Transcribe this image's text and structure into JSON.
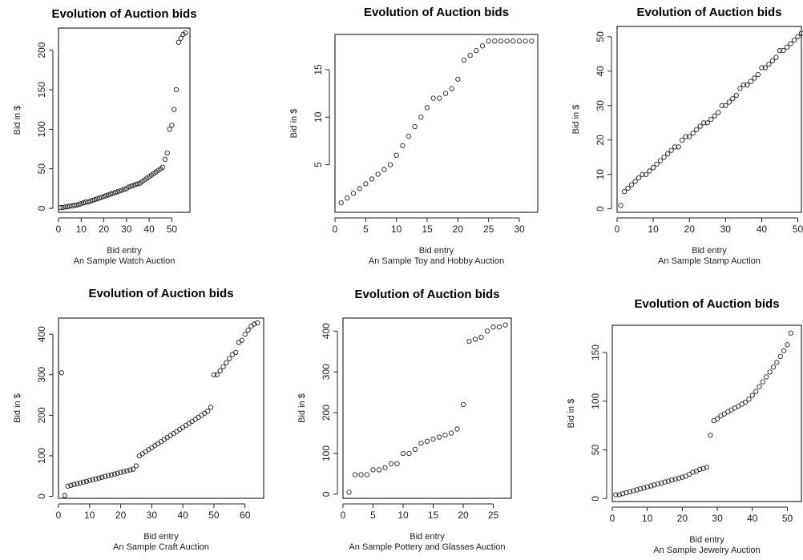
{
  "chart_data": [
    {
      "type": "scatter",
      "title": "Evolution of Auction bids",
      "xlabel": "Bid entry",
      "sublabel": "An Sample Watch Auction",
      "ylabel": "Bid in $",
      "xlim": [
        0,
        58
      ],
      "ylim": [
        -5,
        228
      ],
      "xticks": [
        0,
        10,
        20,
        30,
        40,
        50
      ],
      "yticks": [
        0,
        50,
        100,
        150,
        200
      ],
      "grid": false,
      "series": [
        {
          "values": [
            1,
            1,
            2,
            2,
            3,
            3,
            4,
            4,
            5,
            6,
            7,
            8,
            8,
            9,
            10,
            11,
            12,
            13,
            14,
            15,
            16,
            17,
            18,
            19,
            20,
            21,
            22,
            23,
            24,
            25,
            27,
            28,
            29,
            30,
            31,
            32,
            34,
            36,
            38,
            40,
            42,
            44,
            46,
            48,
            50,
            52,
            62,
            70,
            100,
            105,
            125,
            150,
            210,
            215,
            220,
            222
          ]
        }
      ]
    },
    {
      "type": "scatter",
      "title": "Evolution of Auction bids",
      "xlabel": "Bid entry",
      "sublabel": "An Sample Toy and Hobby Auction",
      "ylabel": "Bid in $",
      "xlim": [
        0,
        33
      ],
      "ylim": [
        0,
        18.7
      ],
      "xticks": [
        0,
        5,
        10,
        15,
        20,
        25,
        30
      ],
      "yticks": [
        5,
        10,
        15
      ],
      "grid": false,
      "series": [
        {
          "values": [
            1,
            1.5,
            2,
            2.5,
            3,
            3.5,
            4,
            4.5,
            5,
            6,
            7,
            8,
            9,
            10,
            11,
            12,
            12,
            12.5,
            13,
            14,
            16,
            16.5,
            17,
            17.5,
            18,
            18,
            18,
            18,
            18,
            18,
            18,
            18
          ]
        }
      ]
    },
    {
      "type": "scatter",
      "title": "Evolution of Auction bids",
      "xlabel": "Bid entry",
      "sublabel": "An Sample Stamp Auction",
      "ylabel": "Bid in $",
      "xlim": [
        0,
        51
      ],
      "ylim": [
        -1,
        53
      ],
      "xticks": [
        0,
        10,
        20,
        30,
        40,
        50
      ],
      "yticks": [
        0,
        10,
        20,
        30,
        40,
        50
      ],
      "grid": false,
      "series": [
        {
          "values": [
            1,
            5,
            6,
            7,
            8,
            9,
            10,
            10,
            11,
            12,
            13,
            14,
            15,
            16,
            17,
            18,
            18,
            20,
            21,
            21,
            22,
            23,
            24,
            25,
            25,
            26,
            27,
            28,
            30,
            30,
            31,
            32,
            33,
            35,
            36,
            36,
            37,
            38,
            39,
            41,
            41,
            42,
            43,
            44,
            46,
            46,
            47,
            48,
            49,
            50,
            51
          ]
        }
      ]
    },
    {
      "type": "scatter",
      "title": "Evolution of Auction bids",
      "xlabel": "Bid entry",
      "sublabel": "An Sample Craft Auction",
      "ylabel": "Bid in $",
      "xlim": [
        0,
        66
      ],
      "ylim": [
        -5,
        440
      ],
      "xticks": [
        0,
        10,
        20,
        30,
        40,
        50,
        60
      ],
      "yticks": [
        0,
        100,
        200,
        300,
        400
      ],
      "grid": false,
      "series": [
        {
          "values": [
            305,
            2,
            25,
            27,
            29,
            31,
            33,
            35,
            37,
            39,
            41,
            43,
            45,
            47,
            49,
            51,
            53,
            55,
            57,
            59,
            61,
            63,
            65,
            67,
            75,
            100,
            105,
            110,
            115,
            120,
            125,
            130,
            135,
            140,
            145,
            150,
            155,
            160,
            165,
            170,
            175,
            180,
            185,
            190,
            195,
            200,
            205,
            210,
            220,
            300,
            300,
            310,
            320,
            330,
            340,
            350,
            355,
            380,
            385,
            400,
            410,
            420,
            425,
            428
          ]
        }
      ]
    },
    {
      "type": "scatter",
      "title": "Evolution of Auction bids",
      "xlabel": "Bid entry",
      "sublabel": "An Sample Pottery and Glasses Auction",
      "ylabel": "Bid in $",
      "xlim": [
        0,
        28
      ],
      "ylim": [
        -10,
        432
      ],
      "xticks": [
        0,
        5,
        10,
        15,
        20,
        25
      ],
      "yticks": [
        0,
        100,
        200,
        300,
        400
      ],
      "grid": false,
      "series": [
        {
          "values": [
            5,
            48,
            48,
            48,
            60,
            60,
            65,
            75,
            75,
            100,
            100,
            110,
            125,
            130,
            135,
            140,
            145,
            150,
            160,
            220,
            375,
            380,
            385,
            400,
            410,
            410,
            415
          ]
        }
      ]
    },
    {
      "type": "scatter",
      "title": "Evolution of Auction bids",
      "xlabel": "Bid entry",
      "sublabel": "An Sample Jewelry Auction",
      "ylabel": "Bid in $",
      "xlim": [
        0,
        54
      ],
      "ylim": [
        -3,
        178
      ],
      "xticks": [
        0,
        10,
        20,
        30,
        40,
        50
      ],
      "yticks": [
        0,
        50,
        100,
        150
      ],
      "grid": false,
      "series": [
        {
          "values": [
            4,
            4,
            5,
            6,
            7,
            8,
            9,
            10,
            11,
            12,
            13,
            14,
            15,
            16,
            17,
            18,
            19,
            20,
            21,
            22,
            23,
            25,
            27,
            28,
            30,
            31,
            32,
            65,
            80,
            82,
            85,
            87,
            89,
            91,
            93,
            95,
            97,
            99,
            102,
            106,
            110,
            115,
            120,
            125,
            130,
            135,
            140,
            146,
            152,
            158,
            170
          ]
        }
      ]
    }
  ]
}
